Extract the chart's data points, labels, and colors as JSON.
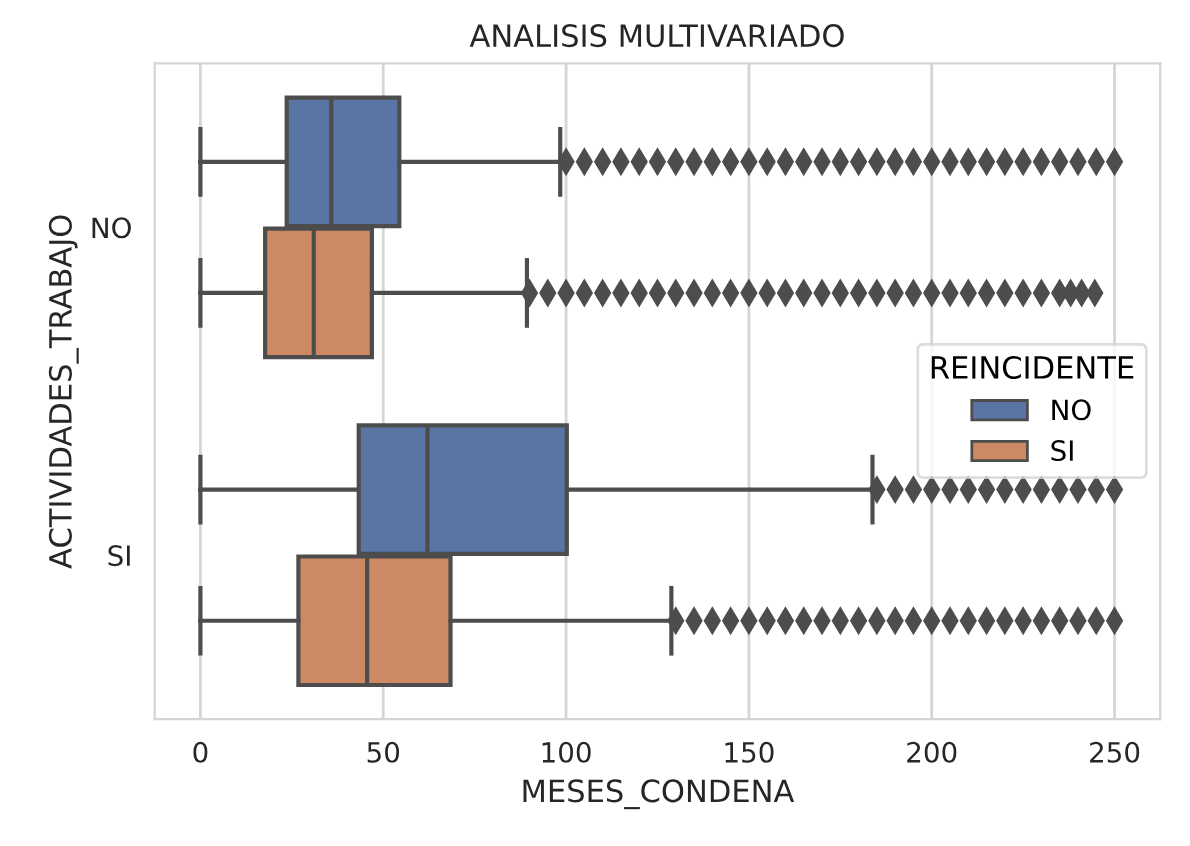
{
  "chart_data": {
    "type": "box",
    "orientation": "horizontal",
    "title": "ANALISIS MULTIVARIADO",
    "xlabel": "MESES_CONDENA",
    "ylabel": "ACTIVIDADES_TRABAJO",
    "categories": [
      "NO",
      "SI"
    ],
    "legend_title": "REINCIDENTE",
    "legend": "right",
    "grid": "x",
    "xlim": [
      -12.5,
      262.5
    ],
    "xticks": [
      0,
      50,
      100,
      150,
      200,
      250
    ],
    "series": [
      {
        "name": "NO",
        "color": "#5875a4",
        "boxes": [
          {
            "low": 0,
            "q1": 23.6,
            "median": 35.8,
            "q3": 54.4,
            "high": 98.4,
            "outliers": [
              100,
              105,
              110,
              115,
              120,
              125,
              130,
              135,
              140,
              145,
              150,
              155,
              160,
              165,
              170,
              175,
              180,
              185,
              190,
              195,
              200,
              205,
              210,
              215,
              220,
              225,
              230,
              235,
              240,
              245,
              250
            ]
          },
          {
            "low": 0,
            "q1": 43.3,
            "median": 62.1,
            "q3": 100.2,
            "high": 183.8,
            "outliers": [
              185,
              190,
              195,
              200,
              205,
              210,
              215,
              220,
              225,
              230,
              235,
              240,
              245,
              250
            ]
          }
        ]
      },
      {
        "name": "SI",
        "color": "#cc8963",
        "boxes": [
          {
            "low": 0,
            "q1": 17.7,
            "median": 31,
            "q3": 46.9,
            "high": 89.3,
            "outliers": [
              90,
              95,
              100,
              105,
              110,
              115,
              120,
              125,
              130,
              135,
              140,
              145,
              150,
              155,
              160,
              165,
              170,
              175,
              180,
              185,
              190,
              195,
              200,
              205,
              210,
              215,
              220,
              225,
              230,
              235,
              238,
              241,
              244.6
            ]
          },
          {
            "low": 0,
            "q1": 26.8,
            "median": 45.6,
            "q3": 68.4,
            "high": 128.8,
            "outliers": [
              130,
              135,
              140,
              145,
              150,
              155,
              160,
              165,
              170,
              175,
              180,
              185,
              190,
              195,
              200,
              205,
              210,
              215,
              220,
              225,
              230,
              235,
              240,
              245,
              250
            ]
          }
        ]
      }
    ]
  }
}
